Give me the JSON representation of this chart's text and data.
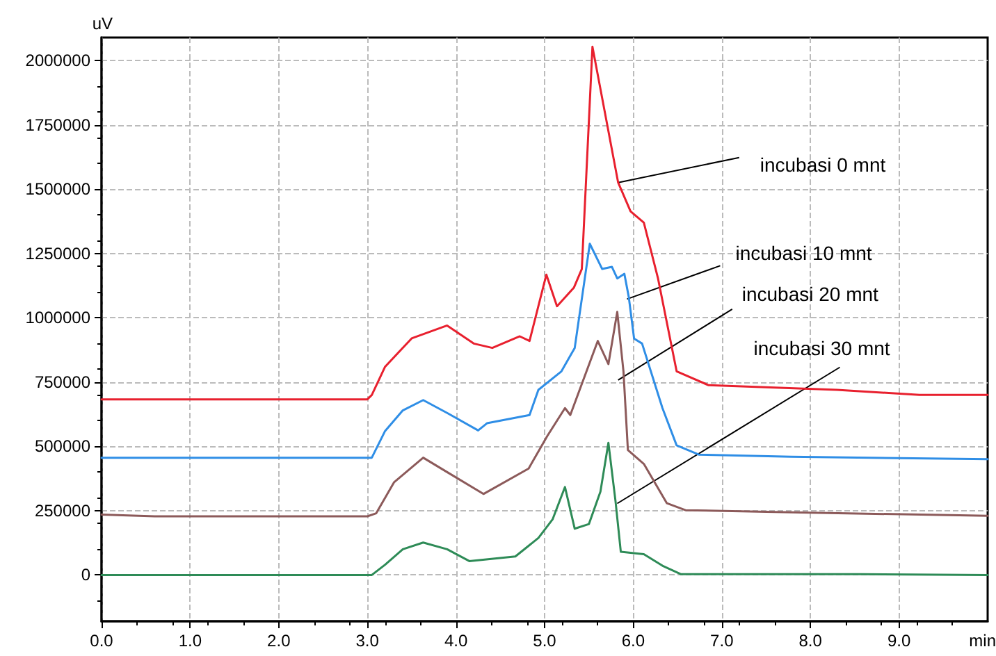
{
  "chart_data": {
    "type": "line",
    "xlabel": "min",
    "ylabel": "uV",
    "xlim": [
      0,
      10
    ],
    "ylim": [
      -180000,
      2090000
    ],
    "xticks": [
      {
        "value": 0,
        "label": "0.0"
      },
      {
        "value": 1,
        "label": "1.0"
      },
      {
        "value": 2,
        "label": "2.0"
      },
      {
        "value": 3,
        "label": "3.0"
      },
      {
        "value": 4,
        "label": "4.0"
      },
      {
        "value": 5,
        "label": "5.0"
      },
      {
        "value": 6,
        "label": "6.0"
      },
      {
        "value": 7,
        "label": "7.0"
      },
      {
        "value": 8,
        "label": "8.0"
      },
      {
        "value": 9,
        "label": "9.0"
      }
    ],
    "yticks": [
      0,
      250000,
      500000,
      750000,
      1000000,
      1250000,
      1500000,
      1750000,
      2000000
    ],
    "grid": true,
    "marker": "none",
    "line_style": "solid",
    "series": [
      {
        "color": "#e8202e",
        "x": [
          0,
          3.0,
          3.05,
          3.2,
          3.5,
          3.9,
          4.2,
          4.41,
          4.72,
          4.83,
          5.02,
          5.14,
          5.33,
          5.42,
          5.54,
          5.83,
          5.97,
          6.12,
          6.28,
          6.49,
          6.85,
          8.3,
          9.23,
          10
        ],
        "values": [
          683000,
          683000,
          700000,
          810000,
          920000,
          970000,
          900000,
          883000,
          928000,
          910000,
          1168000,
          1045000,
          1117000,
          1190000,
          2054000,
          1526000,
          1414000,
          1370000,
          1153000,
          792000,
          738000,
          720000,
          700000,
          700000
        ]
      },
      {
        "color": "#2f8ee6",
        "x": [
          0,
          3.05,
          3.2,
          3.4,
          3.63,
          3.9,
          4.25,
          4.35,
          4.83,
          4.93,
          5.19,
          5.34,
          5.51,
          5.65,
          5.76,
          5.82,
          5.9,
          5.95,
          6.01,
          6.1,
          6.33,
          6.49,
          6.74,
          7.78,
          10
        ],
        "values": [
          456000,
          456000,
          560000,
          640000,
          680000,
          630000,
          562000,
          590000,
          622000,
          720000,
          792000,
          883000,
          1288000,
          1190000,
          1198000,
          1153000,
          1171000,
          1081000,
          919000,
          900000,
          649000,
          504000,
          468000,
          460000,
          450000
        ]
      },
      {
        "color": "#8c5a5a",
        "x": [
          0,
          0.6,
          3.0,
          3.1,
          3.3,
          3.63,
          3.9,
          4.31,
          4.82,
          5.03,
          5.23,
          5.29,
          5.6,
          5.72,
          5.82,
          5.89,
          5.94,
          6.12,
          6.38,
          6.59,
          7.89,
          10
        ],
        "values": [
          235000,
          228000,
          228000,
          240000,
          360000,
          456000,
          400000,
          315000,
          414000,
          540000,
          649000,
          622000,
          910000,
          820000,
          1023000,
          792000,
          486000,
          432000,
          279000,
          252000,
          243000,
          230000
        ]
      },
      {
        "color": "#2e8b57",
        "x": [
          0,
          3.05,
          3.2,
          3.4,
          3.63,
          3.9,
          4.15,
          4.67,
          4.93,
          5.09,
          5.23,
          5.34,
          5.5,
          5.63,
          5.72,
          5.8,
          5.86,
          6.12,
          6.33,
          6.54,
          8.56,
          10
        ],
        "values": [
          0,
          0,
          40000,
          100000,
          126000,
          100000,
          54000,
          72000,
          144000,
          216000,
          342000,
          180000,
          198000,
          324000,
          514000,
          288000,
          90000,
          81000,
          36000,
          3000,
          3000,
          0
        ]
      }
    ],
    "annotations": [
      {
        "text": "incubasi 0 mnt",
        "x": 5.83,
        "y": 1526000
      },
      {
        "text": "incubasi 10 mnt",
        "x": 5.93,
        "y": 1073000
      },
      {
        "text": "incubasi 20 mnt",
        "x": 5.83,
        "y": 758000
      },
      {
        "text": "incubasi 30 mnt",
        "x": 5.82,
        "y": 278000
      }
    ]
  }
}
